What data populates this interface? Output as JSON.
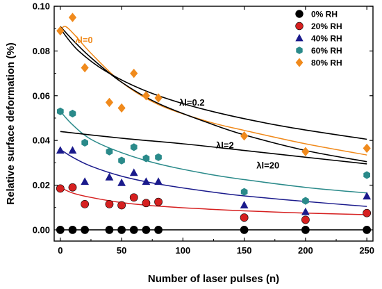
{
  "chart_data": {
    "type": "scatter",
    "xlabel": "Number of laser pulses (n)",
    "ylabel": "Relative surface deformation (%)",
    "xlim": [
      -5,
      255
    ],
    "ylim": [
      -0.005,
      0.1
    ],
    "xticks": [
      0,
      50,
      100,
      150,
      200,
      250
    ],
    "yticks": [
      0.0,
      0.02,
      0.04,
      0.06,
      0.08,
      0.1
    ],
    "ytick_labels": [
      "0.00",
      "0.02",
      "0.04",
      "0.06",
      "0.08",
      "0.10"
    ],
    "legend_position": "top-right",
    "series": [
      {
        "name": "0% RH",
        "color": "#000000",
        "marker": "circle",
        "x": [
          0,
          10,
          20,
          40,
          50,
          60,
          70,
          80,
          150,
          200,
          250
        ],
        "y": [
          0.0,
          0.0,
          0.0,
          0.0,
          0.0,
          0.0,
          0.0,
          0.0,
          0.0,
          0.0,
          0.0
        ],
        "fit": [
          [
            0,
            0
          ],
          [
            250,
            0
          ]
        ]
      },
      {
        "name": "20% RH",
        "color": "#d62020",
        "marker": "circle",
        "x": [
          0,
          10,
          20,
          40,
          50,
          60,
          70,
          80,
          150,
          200,
          250
        ],
        "y": [
          0.0185,
          0.019,
          0.0115,
          0.0115,
          0.011,
          0.0145,
          0.012,
          0.0125,
          0.0055,
          0.0045,
          0.0075
        ],
        "fit": [
          [
            0,
            0.019
          ],
          [
            10,
            0.0165
          ],
          [
            25,
            0.0145
          ],
          [
            50,
            0.0122
          ],
          [
            80,
            0.0106
          ],
          [
            120,
            0.0093
          ],
          [
            150,
            0.0085
          ],
          [
            200,
            0.0075
          ],
          [
            250,
            0.0068
          ]
        ]
      },
      {
        "name": "40% RH",
        "color": "#1a1a8c",
        "marker": "triangle",
        "x": [
          0,
          10,
          20,
          40,
          50,
          60,
          70,
          80,
          150,
          200,
          250
        ],
        "y": [
          0.0355,
          0.0355,
          0.0215,
          0.0235,
          0.021,
          0.0255,
          0.0215,
          0.0215,
          0.011,
          0.008,
          0.015
        ],
        "fit": [
          [
            0,
            0.036
          ],
          [
            10,
            0.0325
          ],
          [
            25,
            0.0285
          ],
          [
            50,
            0.024
          ],
          [
            80,
            0.0205
          ],
          [
            120,
            0.0172
          ],
          [
            150,
            0.0152
          ],
          [
            200,
            0.0127
          ],
          [
            250,
            0.0105
          ]
        ]
      },
      {
        "name": "60% RH",
        "color": "#2a8a8a",
        "marker": "hexagon",
        "x": [
          0,
          10,
          20,
          40,
          50,
          60,
          70,
          80,
          150,
          200,
          250
        ],
        "y": [
          0.053,
          0.052,
          0.039,
          0.035,
          0.031,
          0.037,
          0.032,
          0.0325,
          0.017,
          0.013,
          0.0245
        ],
        "fit": [
          [
            0,
            0.053
          ],
          [
            10,
            0.047
          ],
          [
            25,
            0.0405
          ],
          [
            50,
            0.0345
          ],
          [
            80,
            0.0295
          ],
          [
            120,
            0.025
          ],
          [
            150,
            0.0225
          ],
          [
            200,
            0.019
          ],
          [
            250,
            0.0165
          ]
        ]
      },
      {
        "name": "80% RH",
        "color": "#f08a1c",
        "marker": "diamond",
        "x": [
          0,
          10,
          20,
          40,
          50,
          60,
          70,
          80,
          150,
          200,
          250
        ],
        "y": [
          0.089,
          0.095,
          0.0725,
          0.057,
          0.0545,
          0.07,
          0.06,
          0.059,
          0.042,
          0.035,
          0.0365
        ],
        "fit": [
          [
            0,
            0.089
          ],
          [
            4,
            0.091
          ],
          [
            12,
            0.087
          ],
          [
            25,
            0.079
          ],
          [
            50,
            0.066
          ],
          [
            80,
            0.056
          ],
          [
            120,
            0.0485
          ],
          [
            150,
            0.0445
          ],
          [
            200,
            0.0385
          ],
          [
            250,
            0.0335
          ]
        ]
      }
    ],
    "model_curves": [
      {
        "name": "λl=0",
        "color": "#000000",
        "points": [
          [
            0,
            0.091
          ],
          [
            10,
            0.085
          ],
          [
            25,
            0.077
          ],
          [
            50,
            0.066
          ],
          [
            80,
            0.0565
          ],
          [
            120,
            0.048
          ],
          [
            150,
            0.0425
          ],
          [
            200,
            0.0355
          ],
          [
            250,
            0.0305
          ]
        ]
      },
      {
        "name": "λl=0.2",
        "color": "#000000",
        "points": [
          [
            0,
            0.09
          ],
          [
            15,
            0.08
          ],
          [
            40,
            0.07
          ],
          [
            75,
            0.061
          ],
          [
            120,
            0.0535
          ],
          [
            180,
            0.0465
          ],
          [
            250,
            0.0405
          ]
        ]
      },
      {
        "name": "λl=2",
        "color": "#000000",
        "points": [
          [
            0,
            0.044
          ],
          [
            50,
            0.041
          ],
          [
            100,
            0.0385
          ],
          [
            150,
            0.0355
          ],
          [
            200,
            0.0325
          ],
          [
            250,
            0.0295
          ]
        ]
      }
    ],
    "annotations": [
      {
        "text": "λl=0",
        "x": 12,
        "y": 0.0835,
        "color": "#f08a1c"
      },
      {
        "text": "λl=0.2",
        "x": 97,
        "y": 0.0555,
        "color": "#000000"
      },
      {
        "text": "λl=2",
        "x": 127,
        "y": 0.0365,
        "color": "#000000"
      },
      {
        "text": "λl=20",
        "x": 160,
        "y": 0.0275,
        "color": "#000000"
      }
    ]
  }
}
